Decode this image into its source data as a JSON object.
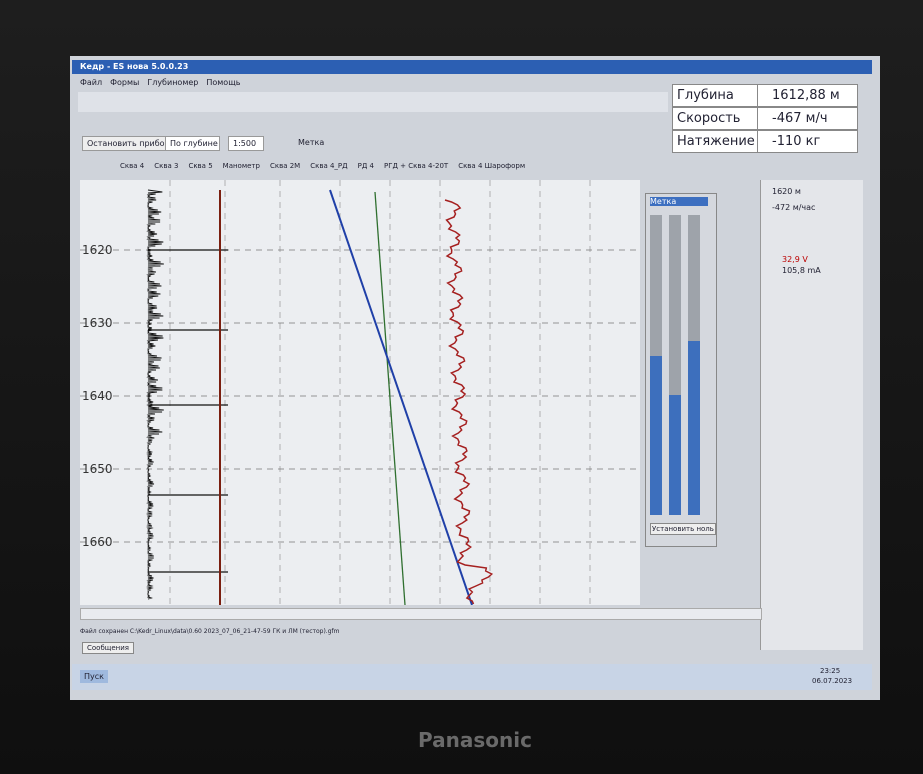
{
  "window_title": "Кедр - ES нова 5.0.0.23",
  "menu": [
    "Файл",
    "Формы",
    "Глубиномер",
    "Помощь"
  ],
  "toolbar": {
    "device_button": "Остановить прибор",
    "mode": "По глубине",
    "scale": "1:500",
    "mark": "Метка"
  },
  "tabs": [
    "Сква 4",
    "Сква 3",
    "Сква 5",
    "Манометр",
    "Сква 2М",
    "Сква 4_РД",
    "РД 4",
    "РГД + Сква 4-20Т",
    "Сква 4 Шароформ"
  ],
  "readouts": [
    {
      "label": "Глубина",
      "value": "1612,88 м"
    },
    {
      "label": "Скорость",
      "value": "-467 м/ч"
    },
    {
      "label": "Натяжение",
      "value": "-110 кг"
    }
  ],
  "depth_labels": [
    "1620",
    "1630",
    "1640",
    "1650",
    "1660"
  ],
  "gauge_window": {
    "title": "Метка",
    "button": "Установить ноль"
  },
  "side_panel": {
    "depth": "1620 м",
    "speed": "-472 м/час",
    "voltage": "32,9 V",
    "current": "105,8 mA"
  },
  "status": "Файл сохранен C:\\Kedr_Linux\\data\\0.60 2023_07_06_21-47-59 ГК и ЛМ (тестор).gfm",
  "messages_button": "Сообщения",
  "start_button": "Пуск",
  "clock": {
    "time": "23:25",
    "date": "06.07.2023"
  },
  "brand": "Panasonic"
}
